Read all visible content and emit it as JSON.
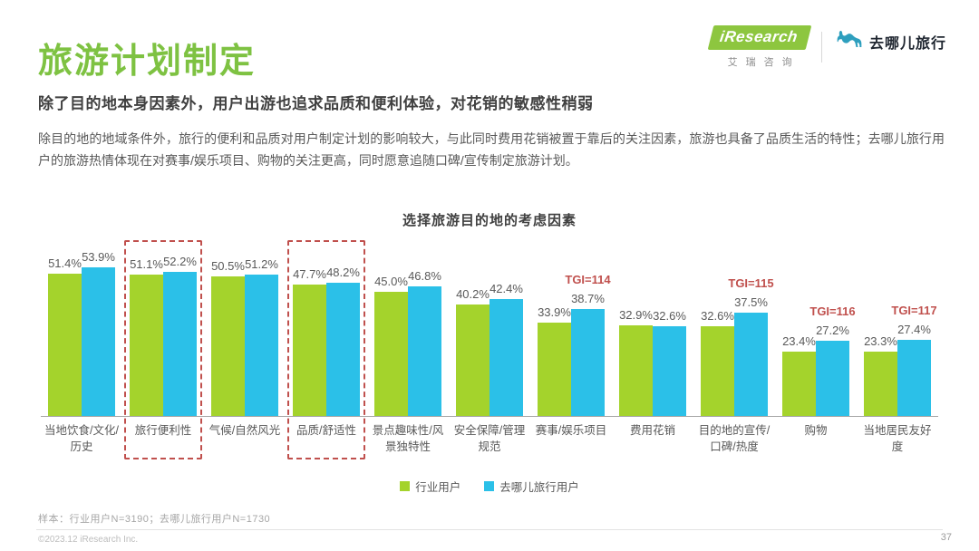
{
  "header": {
    "title": "旅游计划制定",
    "subtitle": "除了目的地本身因素外，用户出游也追求品质和便利体验，对花销的敏感性稍弱",
    "body": "除目的地的地域条件外，旅行的便利和品质对用户制定计划的影响较大，与此同时费用花销被置于靠后的关注因素，旅游也具备了品质生活的特性；去哪儿旅行用户的旅游热情体现在对赛事/娱乐项目、购物的关注更高，同时愿意追随口碑/宣传制定旅游计划。",
    "logo_iresearch": "iResearch",
    "logo_iresearch_sub": "艾瑞咨询",
    "logo_qunar": "去哪儿旅行"
  },
  "chart_data": {
    "type": "bar",
    "title": "选择旅游目的地的考虑因素",
    "categories": [
      "当地饮食/文化/历史",
      "旅行便利性",
      "气候/自然风光",
      "品质/舒适性",
      "景点趣味性/风景独特性",
      "安全保障/管理规范",
      "赛事/娱乐项目",
      "费用花销",
      "目的地的宣传/口碑/热度",
      "购物",
      "当地居民友好度"
    ],
    "series": [
      {
        "name": "行业用户",
        "color": "#a4d32c",
        "values": [
          51.4,
          51.1,
          50.5,
          47.7,
          45.0,
          40.2,
          33.9,
          32.9,
          32.6,
          23.4,
          23.3
        ]
      },
      {
        "name": "去哪儿旅行用户",
        "color": "#2bc0e8",
        "values": [
          53.9,
          52.2,
          51.2,
          48.2,
          46.8,
          42.4,
          38.7,
          32.6,
          37.5,
          27.2,
          27.4
        ]
      }
    ],
    "value_suffix": "%",
    "tgi_labels": [
      "",
      "",
      "",
      "",
      "",
      "",
      "TGI=114",
      "",
      "TGI=115",
      "TGI=116",
      "TGI=117"
    ],
    "highlighted_categories": [
      1,
      3
    ],
    "highlight_color": "#c0504d",
    "ylim": [
      0,
      60
    ],
    "grid": false,
    "legend_position": "bottom"
  },
  "footer": {
    "sample_note": "样本：行业用户N=3190；去哪儿旅行用户N=1730",
    "copyright": "©2023.12 iResearch Inc.",
    "page_number": "37"
  },
  "colors": {
    "title_green": "#7ec242",
    "bar_green": "#a4d32c",
    "bar_blue": "#2bc0e8",
    "tgi_red": "#c0504d",
    "camel_blue": "#2e9fbe"
  }
}
